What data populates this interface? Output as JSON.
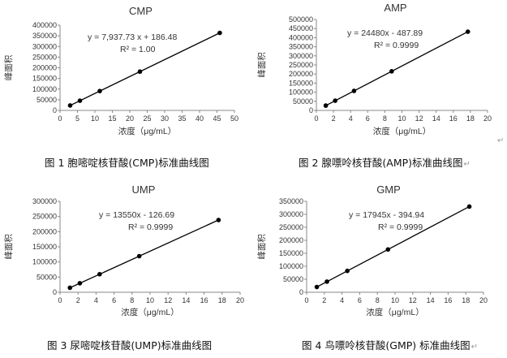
{
  "chart_data": [
    {
      "type": "scatter",
      "title": "CMP",
      "xlabel": "浓度（μg/mL）",
      "ylabel": "峰面积",
      "xlim": [
        0,
        50
      ],
      "ylim": [
        0,
        400000
      ],
      "xticks": [
        0,
        5,
        10,
        15,
        20,
        25,
        30,
        35,
        40,
        45,
        50
      ],
      "yticks": [
        0,
        50000,
        100000,
        150000,
        200000,
        250000,
        300000,
        350000,
        400000
      ],
      "equation": "y = 7,937.73 x + 186.48",
      "r2": "R² = 1.00",
      "series": [
        {
          "x": [
            2.9,
            5.7,
            11.4,
            22.9,
            45.8
          ],
          "y": [
            23200,
            45400,
            90800,
            182000,
            363800
          ],
          "fit": {
            "slope": 7937.73,
            "intercept": 186.48
          }
        }
      ],
      "grid": false,
      "legend": "none"
    },
    {
      "type": "scatter",
      "title": "AMP",
      "xlabel": "浓度（μg/mL）",
      "ylabel": "峰面积",
      "xlim": [
        0,
        20
      ],
      "ylim": [
        0,
        500000
      ],
      "xticks": [
        0,
        2,
        4,
        6,
        8,
        10,
        12,
        14,
        16,
        18,
        20
      ],
      "yticks": [
        0,
        50000,
        100000,
        150000,
        200000,
        250000,
        300000,
        350000,
        400000,
        450000,
        500000
      ],
      "equation": "y = 24480x - 487.89",
      "r2": "R² = 0.9999",
      "series": [
        {
          "x": [
            1.1,
            2.2,
            4.4,
            8.8,
            17.7
          ],
          "y": [
            26400,
            53400,
            107200,
            215000,
            432800
          ],
          "fit": {
            "slope": 24480,
            "intercept": -487.89
          }
        }
      ],
      "grid": false,
      "legend": "none"
    },
    {
      "type": "scatter",
      "title": "UMP",
      "xlabel": "浓度（μg/mL）",
      "ylabel": "峰面积",
      "xlim": [
        0,
        20
      ],
      "ylim": [
        0,
        300000
      ],
      "xticks": [
        0,
        2,
        4,
        6,
        8,
        10,
        12,
        14,
        16,
        18,
        20
      ],
      "yticks": [
        0,
        50000,
        100000,
        150000,
        200000,
        250000,
        300000
      ],
      "equation": "y = 13550x - 126.69",
      "r2": "R² = 0.9999",
      "series": [
        {
          "x": [
            1.1,
            2.2,
            4.4,
            8.8,
            17.6
          ],
          "y": [
            14800,
            29700,
            59500,
            119100,
            238300
          ],
          "fit": {
            "slope": 13550,
            "intercept": -126.69
          }
        }
      ],
      "grid": false,
      "legend": "none"
    },
    {
      "type": "scatter",
      "title": "GMP",
      "xlabel": "浓度（μg/mL）",
      "ylabel": "峰面积",
      "xlim": [
        0,
        20
      ],
      "ylim": [
        0,
        350000
      ],
      "xticks": [
        0,
        2,
        4,
        6,
        8,
        10,
        12,
        14,
        16,
        18,
        20
      ],
      "yticks": [
        0,
        50000,
        100000,
        150000,
        200000,
        250000,
        300000,
        350000
      ],
      "equation": "y = 17945x - 394.94",
      "r2": "R² = 0.9999",
      "series": [
        {
          "x": [
            1.15,
            2.3,
            4.6,
            9.2,
            18.4
          ],
          "y": [
            20200,
            40900,
            82200,
            164700,
            329800
          ],
          "fit": {
            "slope": 17945,
            "intercept": -394.94
          }
        }
      ],
      "grid": false,
      "legend": "none"
    }
  ],
  "captions": [
    "图 1  胞嘧啶核苷酸(CMP)标准曲线图",
    "图 2  腺嘌呤核苷酸(AMP)标准曲线图",
    "图 3  尿嘧啶核苷酸(UMP)标准曲线图",
    "图 4 鸟嘌呤核苷酸(GMP)  标准曲线图"
  ],
  "paragraph_mark": "↵",
  "colors": {
    "axis": "#888888",
    "line": "#000000",
    "marker": "#000000",
    "text": "#333333"
  }
}
